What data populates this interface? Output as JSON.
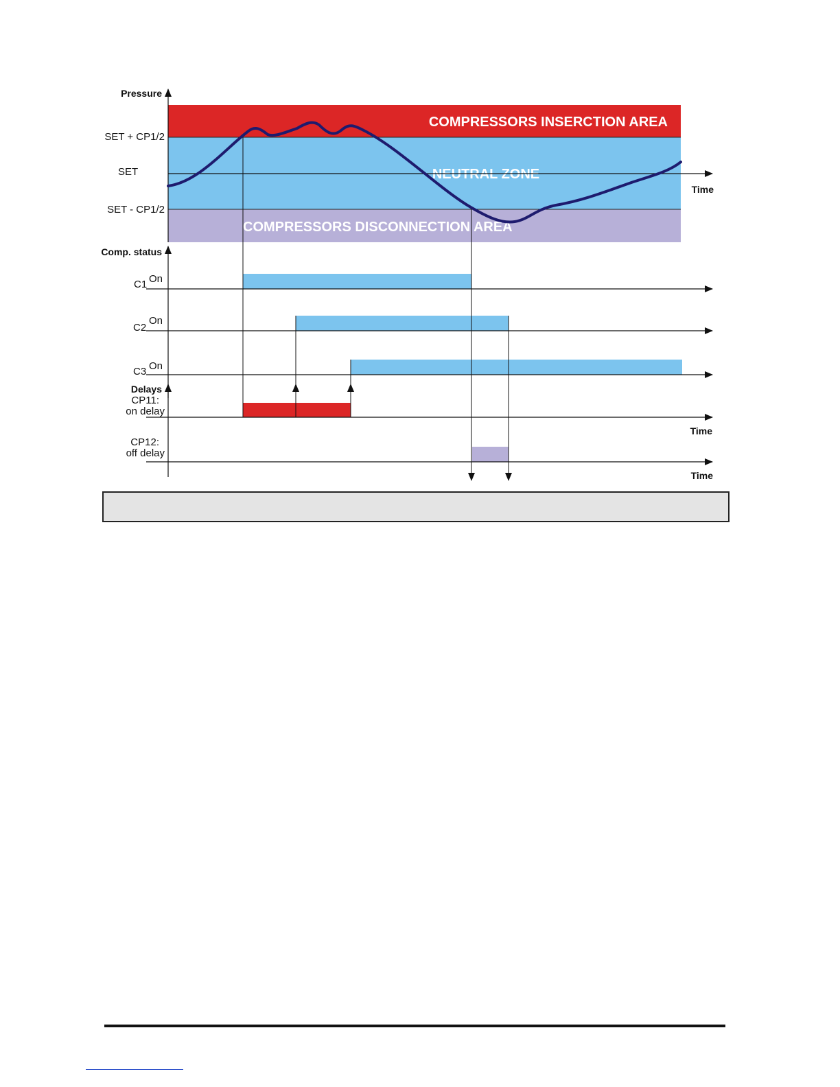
{
  "diagram": {
    "axis_labels": {
      "pressure": "Pressure",
      "comp_status": "Comp. status",
      "delays": "Delays",
      "time": "Time"
    },
    "levels": {
      "set_plus": "SET + CP1/2",
      "set": "SET",
      "set_minus": "SET - CP1/2"
    },
    "zones": {
      "insertion": "COMPRESSORS INSERCTION AREA",
      "neutral": "NEUTRAL ZONE",
      "disconnection": "COMPRESSORS DISCONNECTION AREA"
    },
    "compressors": [
      {
        "name": "C1",
        "state_label": "On"
      },
      {
        "name": "C2",
        "state_label": "On"
      },
      {
        "name": "C3",
        "state_label": "On"
      }
    ],
    "delays": {
      "cp11_line1": "CP11:",
      "cp11_line2": "on delay",
      "cp12_line1": "CP12:",
      "cp12_line2": "off delay"
    },
    "colors": {
      "insertion": "#dc2626",
      "neutral": "#7cc4ee",
      "disconnection": "#b7b0d8",
      "curve": "#1e1b6e",
      "status_bar": "#7cc4ee",
      "on_delay": "#dc2626",
      "off_delay": "#b7b0d8"
    }
  },
  "caption": ""
}
